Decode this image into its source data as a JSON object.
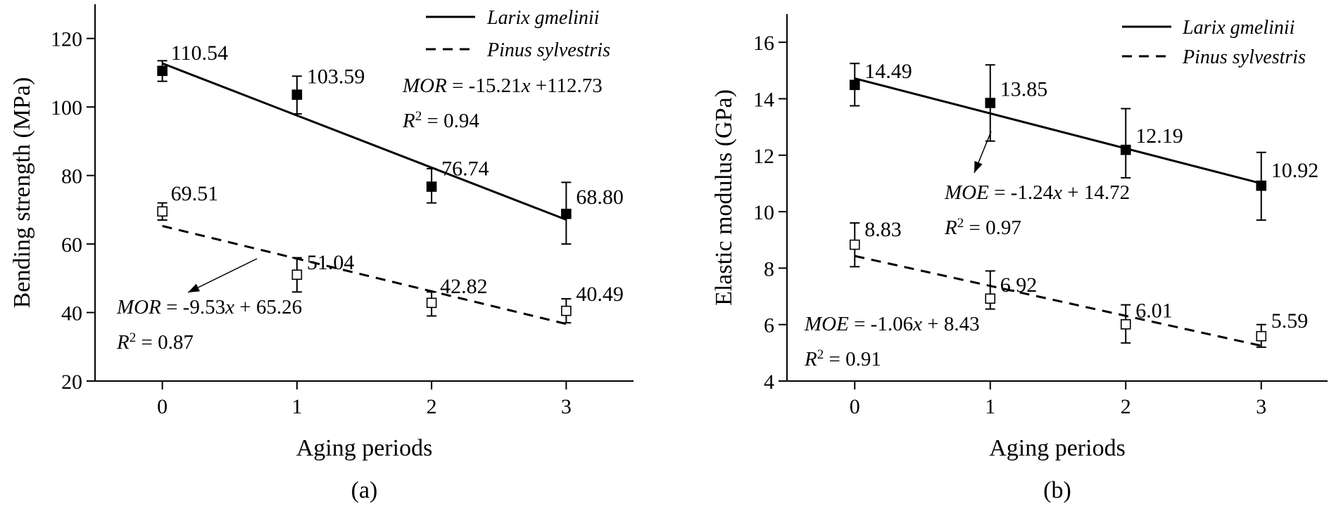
{
  "chart_data": [
    {
      "type": "scatter",
      "panel_label": "(a)",
      "xlabel": "Aging periods",
      "ylabel": "Bending strength (MPa)",
      "xlim": [
        -0.5,
        3.5
      ],
      "ylim": [
        20,
        130
      ],
      "xticks": [
        0,
        1,
        2,
        3
      ],
      "yticks": [
        20,
        40,
        60,
        80,
        100,
        120
      ],
      "grid": false,
      "legend_position": "top-right",
      "series": [
        {
          "name": "Larix gmelinii",
          "marker": "filled-square",
          "line_style": "solid",
          "x": [
            0,
            1,
            2,
            3
          ],
          "y": [
            110.54,
            103.59,
            76.74,
            68.8
          ],
          "labels": [
            "110.54",
            "103.59",
            "76.74",
            "68.80"
          ],
          "err_upper": [
            113.5,
            109,
            82,
            78
          ],
          "err_lower": [
            107.5,
            98,
            72,
            60
          ],
          "fit": {
            "slope": -15.21,
            "intercept": 112.73
          },
          "equation": {
            "var": "MOR",
            "rhs": " = -15.21",
            "rhs2": " +112.73",
            "r2": " = 0.94"
          }
        },
        {
          "name": "Pinus sylvestris",
          "marker": "open-square",
          "line_style": "dashed",
          "x": [
            0,
            1,
            2,
            3
          ],
          "y": [
            69.51,
            51.04,
            42.82,
            40.49
          ],
          "labels": [
            "69.51",
            "51.04",
            "42.82",
            "40.49"
          ],
          "err_upper": [
            72,
            56,
            46,
            44
          ],
          "err_lower": [
            67,
            46,
            39,
            37
          ],
          "fit": {
            "slope": -9.53,
            "intercept": 65.26
          },
          "equation": {
            "var": "MOR",
            "rhs": " = -9.53",
            "rhs2": " + 65.26",
            "r2": " = 0.87"
          }
        }
      ]
    },
    {
      "type": "scatter",
      "panel_label": "(b)",
      "xlabel": "Aging periods",
      "ylabel": "Elastic modulus (GPa)",
      "xlim": [
        -0.5,
        3.5
      ],
      "ylim": [
        4,
        17
      ],
      "xticks": [
        0,
        1,
        2,
        3
      ],
      "yticks": [
        4,
        6,
        8,
        10,
        12,
        14,
        16
      ],
      "grid": false,
      "legend_position": "top-right",
      "series": [
        {
          "name": "Larix gmelinii",
          "marker": "filled-square",
          "line_style": "solid",
          "x": [
            0,
            1,
            2,
            3
          ],
          "y": [
            14.49,
            13.85,
            12.19,
            10.92
          ],
          "labels": [
            "14.49",
            "13.85",
            "12.19",
            "10.92"
          ],
          "err_upper": [
            15.25,
            15.2,
            13.65,
            12.1
          ],
          "err_lower": [
            13.75,
            12.5,
            11.2,
            9.7
          ],
          "fit": {
            "slope": -1.24,
            "intercept": 14.72
          },
          "equation": {
            "var": "MOE",
            "rhs": " = -1.24",
            "rhs2": " + 14.72",
            "r2": " = 0.97"
          }
        },
        {
          "name": "Pinus sylvestris",
          "marker": "open-square",
          "line_style": "dashed",
          "x": [
            0,
            1,
            2,
            3
          ],
          "y": [
            8.83,
            6.92,
            6.01,
            5.59
          ],
          "labels": [
            "8.83",
            "6.92",
            "6.01",
            "5.59"
          ],
          "err_upper": [
            9.6,
            7.9,
            6.7,
            6.0
          ],
          "err_lower": [
            8.05,
            6.55,
            5.35,
            5.2
          ],
          "fit": {
            "slope": -1.06,
            "intercept": 8.43
          },
          "equation": {
            "var": "MOE",
            "rhs": " = -1.06",
            "rhs2": " + 8.43",
            "r2": " = 0.91"
          }
        }
      ]
    }
  ]
}
